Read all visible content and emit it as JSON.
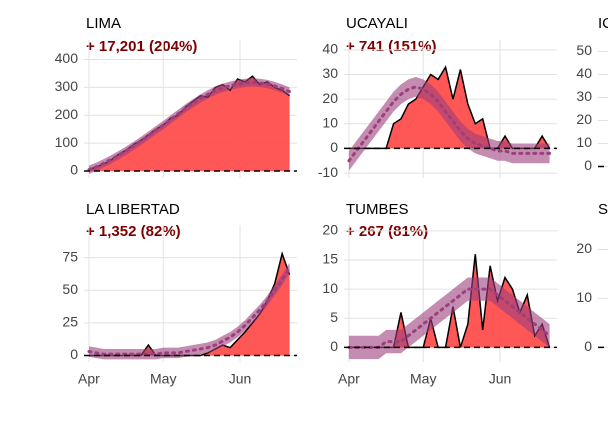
{
  "chart_data": [
    {
      "type": "area",
      "title": "LIMA",
      "subtitle": "+ 17,201 (204%)",
      "x": [
        0,
        3,
        6,
        9,
        12,
        15,
        18,
        21,
        24,
        27,
        30,
        33,
        36,
        39,
        42,
        45,
        48,
        51,
        54,
        57,
        60,
        63,
        66,
        69,
        72,
        75,
        78,
        81
      ],
      "values": [
        5,
        15,
        25,
        40,
        60,
        75,
        95,
        110,
        130,
        150,
        165,
        190,
        200,
        230,
        250,
        270,
        265,
        300,
        310,
        290,
        330,
        320,
        340,
        310,
        320,
        300,
        290,
        270
      ],
      "trend": [
        5,
        15,
        28,
        42,
        57,
        73,
        90,
        108,
        127,
        146,
        165,
        185,
        205,
        225,
        243,
        260,
        275,
        288,
        298,
        306,
        312,
        316,
        318,
        316,
        312,
        305,
        296,
        285
      ],
      "band": 15,
      "color": "#ff4d4d",
      "trend_color": "#9c3f7c",
      "xlim": [
        -2,
        84
      ],
      "xticks": [
        0,
        30,
        61
      ],
      "ylim": [
        -25,
        470
      ],
      "yticks": [
        0,
        100,
        200,
        300,
        400
      ],
      "grid": true,
      "zero_line": true
    },
    {
      "type": "area",
      "title": "UCAYALI",
      "subtitle": "+ 741 (151%)",
      "x": [
        0,
        3,
        6,
        9,
        12,
        15,
        18,
        21,
        24,
        27,
        30,
        33,
        36,
        39,
        42,
        45,
        48,
        51,
        54,
        57,
        60,
        63,
        66,
        69,
        72,
        75,
        78,
        81
      ],
      "values": [
        0,
        0,
        0,
        0,
        0,
        0,
        10,
        12,
        18,
        20,
        25,
        30,
        28,
        33,
        20,
        32,
        18,
        10,
        12,
        0,
        0,
        5,
        0,
        0,
        0,
        0,
        5,
        0
      ],
      "trend": [
        -5,
        -1,
        3,
        7,
        11,
        15,
        19,
        22,
        24,
        25,
        24,
        22,
        19,
        15,
        11,
        7,
        4,
        2,
        1,
        0,
        -1,
        -1,
        -2,
        -2,
        -2,
        -2,
        -2,
        -2
      ],
      "band": 4,
      "color": "#ff4d4d",
      "trend_color": "#9c3f7c",
      "xlim": [
        -2,
        84
      ],
      "xticks": [
        0,
        30,
        61
      ],
      "ylim": [
        -12,
        44
      ],
      "yticks": [
        -10,
        0,
        10,
        20,
        30,
        40
      ],
      "grid": true,
      "zero_line": true
    },
    {
      "type": "area",
      "title": "LA LIBERTAD",
      "subtitle": "+ 1,352 (82%)",
      "x": [
        0,
        3,
        6,
        9,
        12,
        15,
        18,
        21,
        24,
        27,
        30,
        33,
        36,
        39,
        42,
        45,
        48,
        51,
        54,
        57,
        60,
        63,
        66,
        69,
        72,
        75,
        78,
        81
      ],
      "values": [
        0,
        0,
        0,
        0,
        0,
        0,
        0,
        0,
        8,
        0,
        0,
        0,
        0,
        0,
        0,
        0,
        2,
        5,
        8,
        6,
        12,
        18,
        25,
        32,
        42,
        55,
        78,
        62
      ],
      "trend": [
        3,
        2,
        1,
        1,
        1,
        1,
        1,
        1,
        1,
        1,
        2,
        2,
        2,
        3,
        4,
        5,
        6,
        8,
        11,
        14,
        18,
        23,
        29,
        35,
        42,
        50,
        58,
        67
      ],
      "band": 4,
      "color": "#ff4d4d",
      "trend_color": "#9c3f7c",
      "xlim": [
        -2,
        84
      ],
      "xticks": [
        {
          "value": 0,
          "label": "Apr"
        },
        {
          "value": 30,
          "label": "May"
        },
        {
          "value": 61,
          "label": "Jun"
        }
      ],
      "ylim": [
        -5,
        100
      ],
      "yticks": [
        0,
        25,
        50,
        75
      ],
      "grid": true,
      "zero_line": true
    },
    {
      "type": "area",
      "title": "TUMBES",
      "subtitle": "+ 267 (81%)",
      "x": [
        0,
        3,
        6,
        9,
        12,
        15,
        18,
        21,
        24,
        27,
        30,
        33,
        36,
        39,
        42,
        45,
        48,
        51,
        54,
        57,
        60,
        63,
        66,
        69,
        72,
        75,
        78,
        81
      ],
      "values": [
        0,
        0,
        0,
        0,
        0,
        0,
        0,
        6,
        0,
        0,
        0,
        5,
        0,
        0,
        7,
        0,
        4,
        16,
        3,
        14,
        8,
        12,
        10,
        6,
        9,
        2,
        4,
        0
      ],
      "trend": [
        0,
        0,
        0,
        0,
        0,
        1,
        1,
        1,
        2,
        3,
        4,
        5,
        6,
        7,
        8,
        9,
        10,
        10,
        10,
        10,
        9,
        8,
        7,
        6,
        5,
        4,
        3,
        2
      ],
      "band": 2,
      "color": "#ff4d4d",
      "trend_color": "#9c3f7c",
      "xlim": [
        -2,
        84
      ],
      "xticks": [
        {
          "value": 0,
          "label": "Apr"
        },
        {
          "value": 30,
          "label": "May"
        },
        {
          "value": 61,
          "label": "Jun"
        }
      ],
      "ylim": [
        -2.5,
        21
      ],
      "yticks": [
        0,
        5,
        10,
        15,
        20
      ],
      "grid": true,
      "zero_line": true
    },
    {
      "type": "area",
      "title": "IC",
      "xlim": [
        -2,
        84
      ],
      "ylim": [
        -5,
        55
      ],
      "yticks": [
        0,
        10,
        20,
        30,
        40,
        50
      ],
      "grid": true,
      "zero_line": true
    },
    {
      "type": "area",
      "title": "S",
      "xlim": [
        -2,
        84
      ],
      "ylim": [
        -3,
        25
      ],
      "yticks": [
        0,
        10,
        20
      ],
      "grid": true,
      "zero_line": true
    }
  ]
}
